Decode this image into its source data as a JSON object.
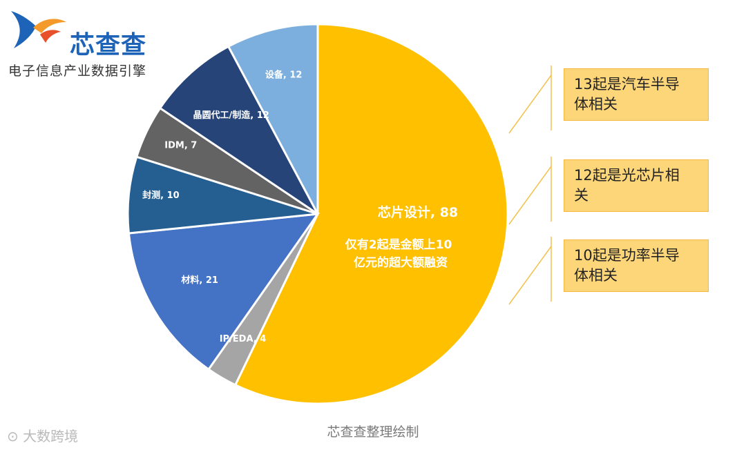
{
  "header": {
    "brand": "芯查查",
    "tagline": "电子信息产业数据引擎"
  },
  "colors": {
    "brand": "#1d63b8",
    "accent": "#f39a2a",
    "note_fill": "#fdd67a",
    "note_border": "#f6b73c"
  },
  "chart_data": {
    "type": "pie",
    "title": "",
    "legend": "none",
    "slices": [
      {
        "label": "芯片设计",
        "value": 88,
        "color": "#ffc000",
        "text": "芯片设计, 88"
      },
      {
        "label": "IP/EDA",
        "value": 4,
        "color": "#a5a5a5",
        "text": "IP/EDA, 4"
      },
      {
        "label": "材料",
        "value": 21,
        "color": "#4472c4",
        "text": "材料, 21"
      },
      {
        "label": "封测",
        "value": 10,
        "color": "#255e91",
        "text": "封测, 10"
      },
      {
        "label": "IDM",
        "value": 7,
        "color": "#636363",
        "text": "IDM, 7"
      },
      {
        "label": "晶圆代工/制造",
        "value": 12,
        "color": "#264478",
        "text": "晶圆代工/制造, 12"
      },
      {
        "label": "设备",
        "value": 12,
        "color": "#7cafdd",
        "text": "设备, 12"
      }
    ],
    "annotation": [
      "仅有2起是金额上10",
      "亿元的超大额融资"
    ]
  },
  "notes": [
    {
      "text": "13起是汽车半导体相关",
      "lines": [
        "13起是汽车半导",
        "体相关"
      ]
    },
    {
      "text": "12起是光芯片相关",
      "lines": [
        "12起是光芯片相",
        "关"
      ]
    },
    {
      "text": "10起是功率半导体相关",
      "lines": [
        "10起是功率半导",
        "体相关"
      ]
    }
  ],
  "footer": {
    "source": "芯查查整理绘制",
    "watermark": "大数跨境"
  }
}
